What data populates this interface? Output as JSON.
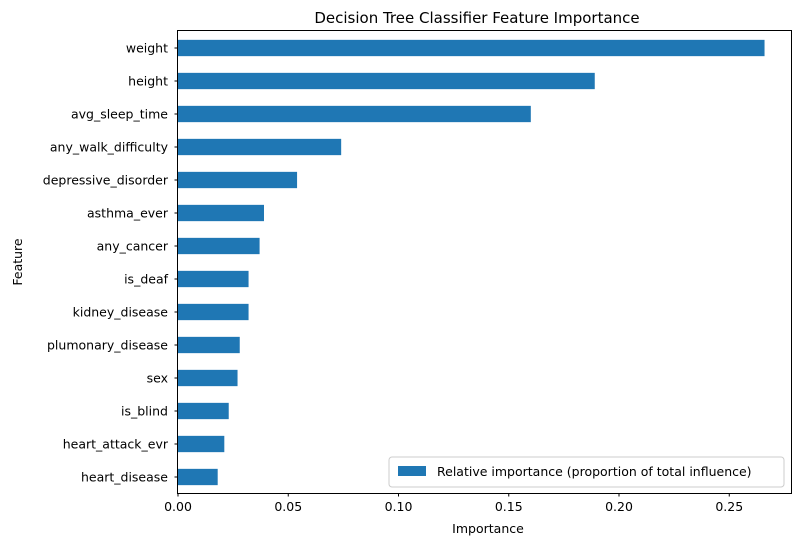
{
  "chart_data": {
    "type": "bar",
    "orientation": "horizontal",
    "title": "Decision Tree Classifier Feature Importance",
    "xlabel": "Importance",
    "ylabel": "Feature",
    "xlim": [
      0,
      0.278
    ],
    "xticks": [
      0.0,
      0.05,
      0.1,
      0.15,
      0.2,
      0.25
    ],
    "xtick_labels": [
      "0.00",
      "0.05",
      "0.10",
      "0.15",
      "0.20",
      "0.25"
    ],
    "categories": [
      "weight",
      "height",
      "avg_sleep_time",
      "any_walk_difficulty",
      "depressive_disorder",
      "asthma_ever",
      "any_cancer",
      "is_deaf",
      "kidney_disease",
      "plumonary_disease",
      "sex",
      "is_blind",
      "heart_attack_evr",
      "heart_disease"
    ],
    "series": [
      {
        "name": "Relative importance (proportion of total influence)",
        "color": "#1f77b4",
        "values": [
          0.266,
          0.189,
          0.16,
          0.074,
          0.054,
          0.039,
          0.037,
          0.032,
          0.032,
          0.028,
          0.027,
          0.023,
          0.021,
          0.018
        ]
      }
    ],
    "grid": false,
    "legend_position": "lower right"
  }
}
